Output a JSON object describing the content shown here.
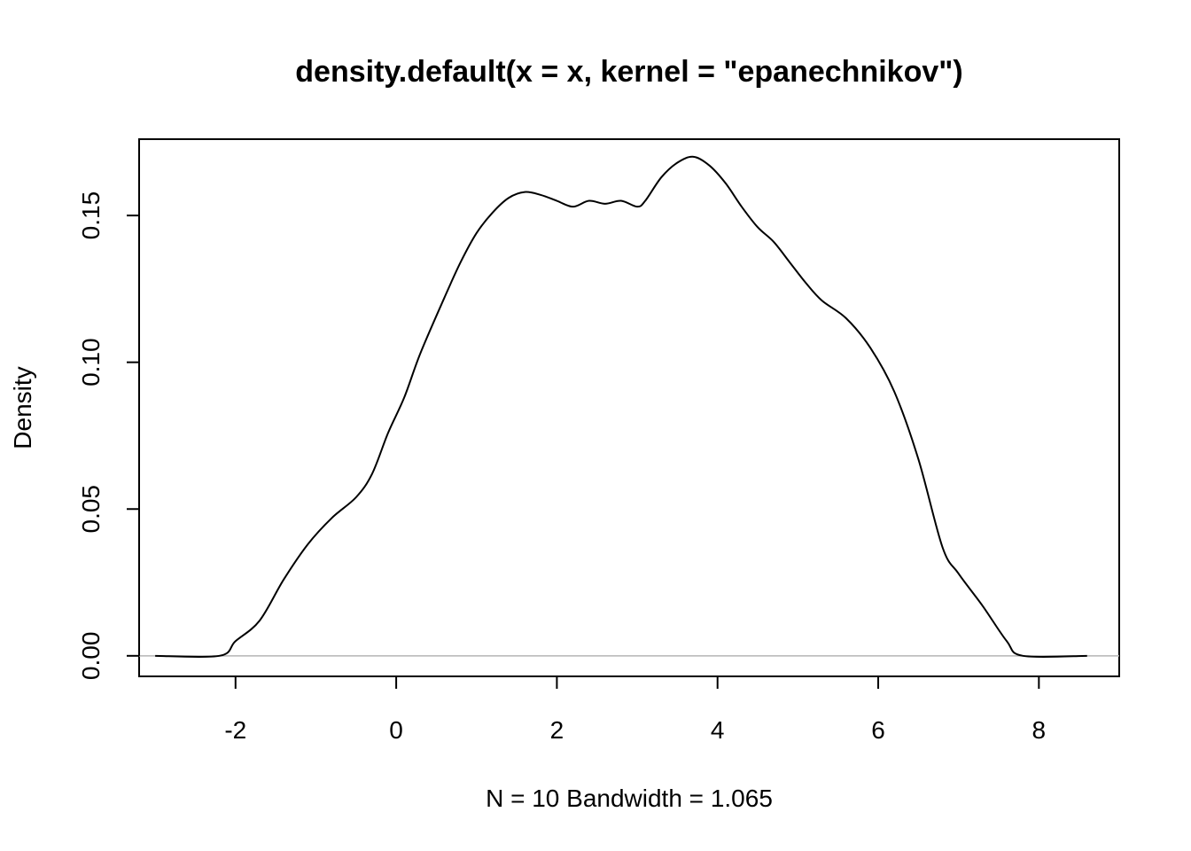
{
  "chart_data": {
    "type": "line",
    "title": "density.default(x = x, kernel = \"epanechnikov\")",
    "xlabel": "N = 10   Bandwidth = 1.065",
    "ylabel": "Density",
    "xlim": [
      -3.2,
      9.0
    ],
    "ylim": [
      -0.007,
      0.176
    ],
    "x_ticks": [
      -2,
      0,
      2,
      4,
      6,
      8
    ],
    "x_tick_labels": [
      "-2",
      "0",
      "2",
      "4",
      "6",
      "8"
    ],
    "y_ticks": [
      0.0,
      0.05,
      0.1,
      0.15
    ],
    "y_tick_labels": [
      "0.00",
      "0.05",
      "0.10",
      "0.15"
    ],
    "grid": false,
    "reference_line_y": 0,
    "colors": {
      "line": "#000000",
      "baseline": "#b5b5b5",
      "frame": "#000000"
    },
    "series": [
      {
        "x": [
          -3.0,
          -2.2,
          -2.0,
          -1.7,
          -1.4,
          -1.1,
          -0.8,
          -0.5,
          -0.3,
          -0.1,
          0.1,
          0.3,
          0.6,
          0.8,
          1.0,
          1.2,
          1.4,
          1.6,
          1.8,
          2.0,
          2.2,
          2.4,
          2.6,
          2.8,
          3.0,
          3.1,
          3.3,
          3.5,
          3.7,
          3.9,
          4.1,
          4.3,
          4.5,
          4.7,
          4.9,
          5.1,
          5.3,
          5.6,
          5.9,
          6.2,
          6.5,
          6.8,
          7.0,
          7.3,
          7.6,
          7.8,
          8.6
        ],
        "y": [
          0.0,
          0.0,
          0.005,
          0.012,
          0.026,
          0.038,
          0.047,
          0.054,
          0.062,
          0.076,
          0.088,
          0.103,
          0.122,
          0.134,
          0.144,
          0.151,
          0.156,
          0.158,
          0.157,
          0.155,
          0.153,
          0.155,
          0.154,
          0.155,
          0.153,
          0.155,
          0.163,
          0.168,
          0.17,
          0.167,
          0.161,
          0.153,
          0.146,
          0.141,
          0.134,
          0.127,
          0.121,
          0.115,
          0.105,
          0.09,
          0.067,
          0.037,
          0.028,
          0.017,
          0.005,
          0.0,
          0.0
        ]
      }
    ]
  }
}
